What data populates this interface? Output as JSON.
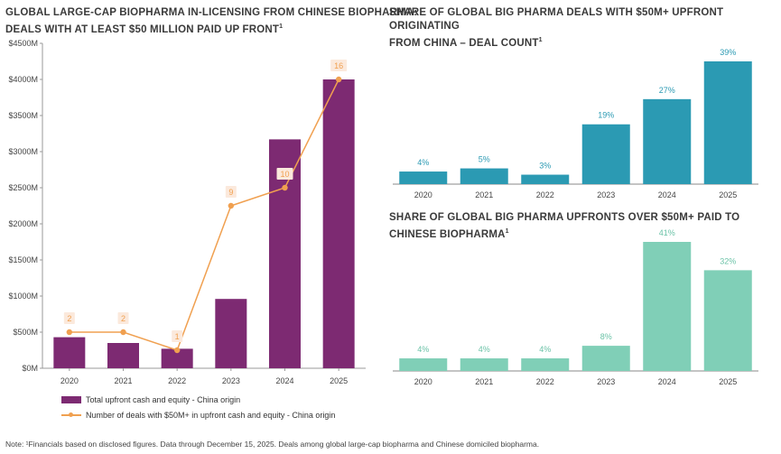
{
  "chart_data": [
    {
      "id": "left",
      "type": "bar",
      "title": "GLOBAL LARGE-CAP BIOPHARMA IN-LICENSING FROM CHINESE BIOPHARMA: DEALS WITH AT LEAST $50 MILLION PAID UP FRONT",
      "title_line1": "GLOBAL LARGE-CAP BIOPHARMA IN-LICENSING FROM CHINESE BIOPHARMA:",
      "title_line2": "DEALS WITH AT LEAST $50 MILLION PAID UP FRONT",
      "title_sup": "1",
      "categories": [
        "2020",
        "2021",
        "2022",
        "2023",
        "2024",
        "2025"
      ],
      "ylim": [
        0,
        4500
      ],
      "yticks": [
        0,
        500,
        1000,
        1500,
        2000,
        2500,
        3000,
        3500,
        4000,
        4500
      ],
      "ytick_labels": [
        "$0M",
        "$500M",
        "$1000M",
        "$1500M",
        "$2000M",
        "$2500M",
        "$3000M",
        "$3500M",
        "$4000M",
        "$4500M"
      ],
      "series": [
        {
          "name": "Total upfront cash and equity - China origin",
          "type": "bar",
          "color": "#7d2a72",
          "values": [
            430,
            350,
            270,
            960,
            3170,
            4000
          ]
        },
        {
          "name": "Number of deals with $50M+ in upfront cash and equity - China origin",
          "type": "line",
          "color": "#f0a050",
          "counts": [
            2,
            2,
            1,
            9,
            10,
            16
          ],
          "count_labels": [
            "2",
            "2",
            "1",
            "9",
            "10",
            "16"
          ],
          "positions_in_y_units": [
            500,
            500,
            250,
            2250,
            2500,
            4000
          ]
        }
      ]
    },
    {
      "id": "top-right",
      "type": "bar",
      "title": "SHARE OF GLOBAL BIG PHARMA DEALS WITH $50M+ UPFRONT ORIGINATING FROM CHINA – DEAL COUNT",
      "title_line1": "SHARE OF GLOBAL BIG PHARMA DEALS WITH $50M+ UPFRONT ORIGINATING",
      "title_line2": "FROM CHINA – DEAL COUNT",
      "title_sup": "1",
      "categories": [
        "2020",
        "2021",
        "2022",
        "2023",
        "2024",
        "2025"
      ],
      "values": [
        4,
        5,
        3,
        19,
        27,
        39
      ],
      "value_labels": [
        "4%",
        "5%",
        "3%",
        "19%",
        "27%",
        "39%"
      ],
      "color": "#2b9ab3",
      "label_color": "#2b9ab3",
      "ylim": [
        0,
        39
      ]
    },
    {
      "id": "bottom-right",
      "type": "bar",
      "title": "SHARE OF GLOBAL BIG PHARMA UPFRONTS OVER $50M+ PAID TO CHINESE BIOPHARMA",
      "title_sup": "1",
      "categories": [
        "2020",
        "2021",
        "2022",
        "2023",
        "2024",
        "2025"
      ],
      "values": [
        4,
        4,
        4,
        8,
        41,
        32
      ],
      "value_labels": [
        "4%",
        "4%",
        "4%",
        "8%",
        "41%",
        "32%"
      ],
      "color": "#80cfb7",
      "label_color": "#6cc3a8",
      "ylim": [
        0,
        41
      ]
    }
  ],
  "note": "Note: ¹Financials based on disclosed figures. Data through December 15, 2025. Deals among global large-cap biopharma and Chinese domiciled biopharma."
}
